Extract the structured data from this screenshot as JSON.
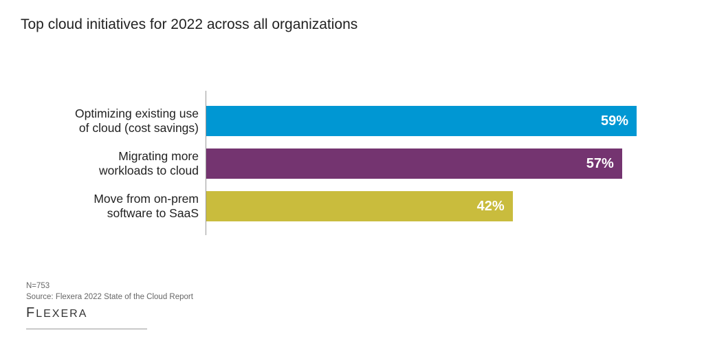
{
  "chart_data": {
    "type": "bar",
    "orientation": "horizontal",
    "title": "Top cloud initiatives for 2022 across all organizations",
    "categories": [
      [
        "Optimizing existing use",
        "of cloud (cost savings)"
      ],
      [
        "Migrating more",
        "workloads to cloud"
      ],
      [
        "Move from on-prem",
        "software to SaaS"
      ]
    ],
    "values": [
      59,
      57,
      42
    ],
    "value_labels": [
      "59%",
      "57%",
      "42%"
    ],
    "colors": [
      "#0097d3",
      "#743470",
      "#c9bc3d"
    ],
    "xlim": [
      0,
      100
    ],
    "grid": false
  },
  "footer": {
    "n": "N=753",
    "source": "Source: Flexera 2022 State of the Cloud Report",
    "logo": "FLEXERA"
  }
}
